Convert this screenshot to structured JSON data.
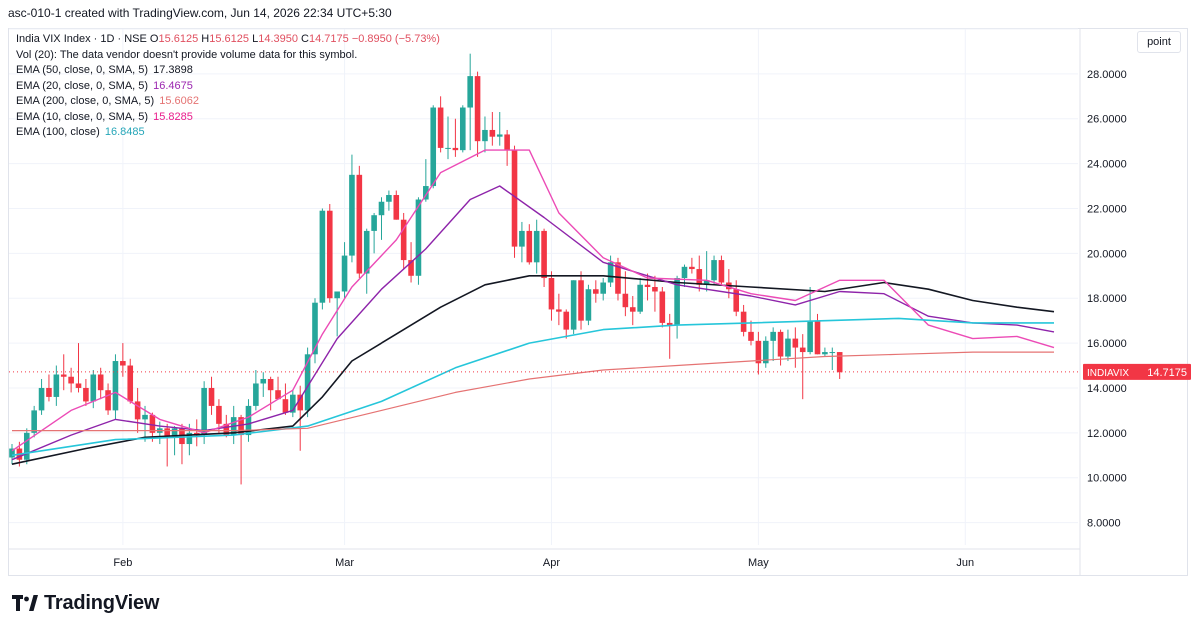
{
  "header": {
    "snapshot_text": "asc-010-1 created with TradingView.com, Jun 14, 2026 22:34 UTC+5:30"
  },
  "legend": {
    "symbol": "India VIX Index · 1D · NSE",
    "open_label": "O",
    "open_value": "15.6125",
    "high_label": "H",
    "high_value": "15.6125",
    "low_label": "L",
    "low_value": "14.3950",
    "close_label": "C",
    "close_value": "14.7175",
    "change": "−0.8950 (−5.73%)",
    "volume_text": "Vol (20): The data vendor doesn't provide volume data for this symbol.",
    "indicators": [
      {
        "label": "EMA (50, close, 0, SMA, 5)",
        "value": "17.3898",
        "color": "#131722"
      },
      {
        "label": "EMA (20, close, 0, SMA, 5)",
        "value": "16.4675",
        "color": "#9c27b0"
      },
      {
        "label": "EMA (200, close, 0, SMA, 5)",
        "value": "15.6062",
        "color": "#e57373"
      },
      {
        "label": "EMA (10, close, 0, SMA, 5)",
        "value": "15.8285",
        "color": "#e91e8c"
      },
      {
        "label": "EMA (100, close)",
        "value": "16.8485",
        "color": "#26c6da"
      }
    ]
  },
  "controls": {
    "scale_mode": "point"
  },
  "price_tag": {
    "symbol": "INDIAVIX",
    "value": "14.7175",
    "color": "#f23645"
  },
  "brand": {
    "name": "TradingView"
  },
  "colors": {
    "up": "#26a69a",
    "down": "#f23645",
    "grid": "#f0f3fa"
  },
  "chart_data": {
    "type": "candlestick",
    "title": "India VIX Index · 1D · NSE",
    "ylim": [
      7.0,
      30.0
    ],
    "y_ticks": [
      "8.0000",
      "10.0000",
      "12.0000",
      "14.0000",
      "16.0000",
      "18.0000",
      "20.0000",
      "22.0000",
      "24.0000",
      "26.0000",
      "28.0000",
      "30.0000"
    ],
    "x_ticks": [
      {
        "label": "Feb",
        "index": 15
      },
      {
        "label": "Mar",
        "index": 45
      },
      {
        "label": "Apr",
        "index": 73
      },
      {
        "label": "May",
        "index": 101
      },
      {
        "label": "Jun",
        "index": 129
      }
    ],
    "candles": [
      [
        10.9,
        11.5,
        10.6,
        11.3
      ],
      [
        11.3,
        11.6,
        10.5,
        10.8
      ],
      [
        10.8,
        12.2,
        10.6,
        12.0
      ],
      [
        12.0,
        13.2,
        11.8,
        13.0
      ],
      [
        13.0,
        14.4,
        12.8,
        14.0
      ],
      [
        14.0,
        14.6,
        13.4,
        13.6
      ],
      [
        13.6,
        15.0,
        13.2,
        14.6
      ],
      [
        14.6,
        15.5,
        13.9,
        14.5
      ],
      [
        14.5,
        14.9,
        13.8,
        14.2
      ],
      [
        14.2,
        16.0,
        13.8,
        14.0
      ],
      [
        14.0,
        14.4,
        13.2,
        13.4
      ],
      [
        13.4,
        14.8,
        13.1,
        14.6
      ],
      [
        14.6,
        14.9,
        13.5,
        13.9
      ],
      [
        13.9,
        14.2,
        12.8,
        13.0
      ],
      [
        13.0,
        15.5,
        12.6,
        15.2
      ],
      [
        15.2,
        16.0,
        14.5,
        15.0
      ],
      [
        15.0,
        15.3,
        13.3,
        13.4
      ],
      [
        13.4,
        14.0,
        12.0,
        12.6
      ],
      [
        12.6,
        13.2,
        11.6,
        12.8
      ],
      [
        12.8,
        12.9,
        11.6,
        12.0
      ],
      [
        12.0,
        12.5,
        11.5,
        12.2
      ],
      [
        12.2,
        12.4,
        10.5,
        11.8
      ],
      [
        11.8,
        12.3,
        11.0,
        12.2
      ],
      [
        12.2,
        12.4,
        10.6,
        11.5
      ],
      [
        11.5,
        12.4,
        11.0,
        12.0
      ],
      [
        12.0,
        12.6,
        11.4,
        11.9
      ],
      [
        11.9,
        14.3,
        11.5,
        14.0
      ],
      [
        14.0,
        14.5,
        12.8,
        13.2
      ],
      [
        13.2,
        13.5,
        12.0,
        12.4
      ],
      [
        12.4,
        12.8,
        11.8,
        11.9
      ],
      [
        11.9,
        13.2,
        11.5,
        12.7
      ],
      [
        12.7,
        12.8,
        9.7,
        11.9
      ],
      [
        11.9,
        13.5,
        11.6,
        13.2
      ],
      [
        13.2,
        14.8,
        13.0,
        14.2
      ],
      [
        14.2,
        14.7,
        13.6,
        14.4
      ],
      [
        14.4,
        14.5,
        13.0,
        13.9
      ],
      [
        13.9,
        14.5,
        13.6,
        13.5
      ],
      [
        13.5,
        14.2,
        12.8,
        12.9
      ],
      [
        12.9,
        13.9,
        12.7,
        13.7
      ],
      [
        13.7,
        14.1,
        11.2,
        13.0
      ],
      [
        13.0,
        15.8,
        12.7,
        15.5
      ],
      [
        15.5,
        18.0,
        15.1,
        17.8
      ],
      [
        17.8,
        22.0,
        17.5,
        21.9
      ],
      [
        21.9,
        22.2,
        17.8,
        18.0
      ],
      [
        18.0,
        18.3,
        16.3,
        18.3
      ],
      [
        18.3,
        20.5,
        18.0,
        19.9
      ],
      [
        19.9,
        24.4,
        19.6,
        23.5
      ],
      [
        23.5,
        23.9,
        18.9,
        19.1
      ],
      [
        19.1,
        21.1,
        18.2,
        21.0
      ],
      [
        21.0,
        21.8,
        20.0,
        21.7
      ],
      [
        21.7,
        22.5,
        20.6,
        22.3
      ],
      [
        22.3,
        22.8,
        21.9,
        22.6
      ],
      [
        22.6,
        22.8,
        21.5,
        21.5
      ],
      [
        21.5,
        21.8,
        19.3,
        19.7
      ],
      [
        19.7,
        20.5,
        18.7,
        19.0
      ],
      [
        19.0,
        22.5,
        18.6,
        22.4
      ],
      [
        22.4,
        24.2,
        22.3,
        23.0
      ],
      [
        23.0,
        26.6,
        22.9,
        26.5
      ],
      [
        26.5,
        27.0,
        24.5,
        24.7
      ],
      [
        24.7,
        26.1,
        24.2,
        24.7
      ],
      [
        24.7,
        26.0,
        24.3,
        24.6
      ],
      [
        24.6,
        26.6,
        24.5,
        26.5
      ],
      [
        26.5,
        28.9,
        24.6,
        27.9
      ],
      [
        27.9,
        28.1,
        24.3,
        25.0
      ],
      [
        25.0,
        26.1,
        24.5,
        25.5
      ],
      [
        25.5,
        26.3,
        24.8,
        25.2
      ],
      [
        25.2,
        26.3,
        24.8,
        25.3
      ],
      [
        25.3,
        25.5,
        23.9,
        24.6
      ],
      [
        24.6,
        24.8,
        19.8,
        20.3
      ],
      [
        20.3,
        21.4,
        19.6,
        21.0
      ],
      [
        21.0,
        21.3,
        19.5,
        19.6
      ],
      [
        19.6,
        21.5,
        19.1,
        21.0
      ],
      [
        21.0,
        21.1,
        18.5,
        18.9
      ],
      [
        18.9,
        19.2,
        17.0,
        17.5
      ],
      [
        17.5,
        18.2,
        16.8,
        17.4
      ],
      [
        17.4,
        17.5,
        16.2,
        16.6
      ],
      [
        16.6,
        18.8,
        16.4,
        18.8
      ],
      [
        18.8,
        19.2,
        16.6,
        17.0
      ],
      [
        17.0,
        18.6,
        16.8,
        18.4
      ],
      [
        18.4,
        18.8,
        17.8,
        18.2
      ],
      [
        18.2,
        18.9,
        17.9,
        18.7
      ],
      [
        18.7,
        19.9,
        18.5,
        19.6
      ],
      [
        19.6,
        19.8,
        17.9,
        18.2
      ],
      [
        18.2,
        19.2,
        17.2,
        17.6
      ],
      [
        17.6,
        18.1,
        16.8,
        17.4
      ],
      [
        17.4,
        18.9,
        17.3,
        18.6
      ],
      [
        18.6,
        19.1,
        17.9,
        18.5
      ],
      [
        18.5,
        19.0,
        17.4,
        18.3
      ],
      [
        18.3,
        18.5,
        16.7,
        16.9
      ],
      [
        16.9,
        17.3,
        15.3,
        16.8
      ],
      [
        16.8,
        19.0,
        16.2,
        18.9
      ],
      [
        18.9,
        19.5,
        18.5,
        19.4
      ],
      [
        19.4,
        19.8,
        19.1,
        19.3
      ],
      [
        19.3,
        19.9,
        18.3,
        18.6
      ],
      [
        18.6,
        20.1,
        18.3,
        18.8
      ],
      [
        18.8,
        19.9,
        18.6,
        19.7
      ],
      [
        19.7,
        19.9,
        18.6,
        18.7
      ],
      [
        18.7,
        19.3,
        18.0,
        18.4
      ],
      [
        18.4,
        18.8,
        17.2,
        17.4
      ],
      [
        17.4,
        17.7,
        16.3,
        16.5
      ],
      [
        16.5,
        17.0,
        15.9,
        16.1
      ],
      [
        16.1,
        16.5,
        14.6,
        15.1
      ],
      [
        15.1,
        16.3,
        14.9,
        16.1
      ],
      [
        16.1,
        16.7,
        15.2,
        16.5
      ],
      [
        16.5,
        16.6,
        15.0,
        15.4
      ],
      [
        15.4,
        16.6,
        15.2,
        16.2
      ],
      [
        16.2,
        16.7,
        14.9,
        15.8
      ],
      [
        15.8,
        16.4,
        13.5,
        15.6
      ],
      [
        15.6,
        18.5,
        15.5,
        17.0
      ],
      [
        17.0,
        17.3,
        15.5,
        15.5
      ],
      [
        15.5,
        15.8,
        15.4,
        15.6
      ],
      [
        15.6,
        15.8,
        14.8,
        15.6
      ],
      [
        15.6,
        15.6,
        14.4,
        14.7
      ]
    ],
    "series": [
      {
        "name": "EMA (50, close, 0, SMA, 5)",
        "color": "#131722",
        "width": 1.6,
        "values": [
          [
            0,
            10.6
          ],
          [
            10,
            11.3
          ],
          [
            18,
            11.8
          ],
          [
            30,
            12.0
          ],
          [
            38,
            12.3
          ],
          [
            42,
            13.6
          ],
          [
            46,
            15.2
          ],
          [
            52,
            16.4
          ],
          [
            58,
            17.6
          ],
          [
            64,
            18.6
          ],
          [
            70,
            19.0
          ],
          [
            80,
            19.0
          ],
          [
            90,
            18.7
          ],
          [
            100,
            18.5
          ],
          [
            110,
            18.3
          ],
          [
            118,
            18.7
          ],
          [
            124,
            18.4
          ],
          [
            130,
            17.9
          ],
          [
            136,
            17.6
          ],
          [
            141,
            17.4
          ]
        ]
      },
      {
        "name": "EMA (20, close, 0, SMA, 5)",
        "color": "#8e24aa",
        "width": 1.4,
        "values": [
          [
            0,
            10.8
          ],
          [
            8,
            11.9
          ],
          [
            14,
            12.6
          ],
          [
            20,
            12.3
          ],
          [
            26,
            12.1
          ],
          [
            32,
            12.4
          ],
          [
            38,
            13.0
          ],
          [
            44,
            16.2
          ],
          [
            50,
            18.4
          ],
          [
            56,
            20.2
          ],
          [
            62,
            22.4
          ],
          [
            66,
            23.0
          ],
          [
            72,
            21.6
          ],
          [
            80,
            19.6
          ],
          [
            90,
            18.6
          ],
          [
            100,
            18.1
          ],
          [
            106,
            17.7
          ],
          [
            112,
            18.3
          ],
          [
            118,
            18.2
          ],
          [
            124,
            17.2
          ],
          [
            130,
            16.9
          ],
          [
            136,
            16.8
          ],
          [
            141,
            16.5
          ]
        ]
      },
      {
        "name": "EMA (10, close, 0, SMA, 5)",
        "color": "#ec4bb6",
        "width": 1.4,
        "values": [
          [
            0,
            11.2
          ],
          [
            8,
            13.0
          ],
          [
            14,
            13.8
          ],
          [
            20,
            12.6
          ],
          [
            26,
            12.0
          ],
          [
            32,
            12.7
          ],
          [
            38,
            13.9
          ],
          [
            42,
            16.4
          ],
          [
            46,
            18.5
          ],
          [
            52,
            20.6
          ],
          [
            58,
            23.6
          ],
          [
            64,
            24.6
          ],
          [
            70,
            24.6
          ],
          [
            74,
            21.8
          ],
          [
            80,
            19.8
          ],
          [
            86,
            18.9
          ],
          [
            94,
            18.8
          ],
          [
            100,
            18.2
          ],
          [
            106,
            17.9
          ],
          [
            112,
            18.8
          ],
          [
            118,
            18.8
          ],
          [
            124,
            16.8
          ],
          [
            130,
            16.2
          ],
          [
            136,
            16.3
          ],
          [
            141,
            15.8
          ]
        ]
      },
      {
        "name": "EMA (100, close)",
        "color": "#26c6da",
        "width": 1.6,
        "values": [
          [
            0,
            11.0
          ],
          [
            14,
            11.7
          ],
          [
            30,
            11.9
          ],
          [
            40,
            12.3
          ],
          [
            50,
            13.4
          ],
          [
            60,
            14.9
          ],
          [
            70,
            16.0
          ],
          [
            80,
            16.6
          ],
          [
            90,
            16.8
          ],
          [
            100,
            16.9
          ],
          [
            110,
            17.0
          ],
          [
            120,
            17.1
          ],
          [
            130,
            16.9
          ],
          [
            141,
            16.9
          ]
        ]
      },
      {
        "name": "EMA (200, close, 0, SMA, 5)",
        "color": "#e57373",
        "width": 1.2,
        "values": [
          [
            0,
            12.1
          ],
          [
            14,
            12.1
          ],
          [
            30,
            12.1
          ],
          [
            40,
            12.2
          ],
          [
            50,
            13.0
          ],
          [
            60,
            13.8
          ],
          [
            70,
            14.4
          ],
          [
            80,
            14.8
          ],
          [
            90,
            15.0
          ],
          [
            100,
            15.2
          ],
          [
            110,
            15.4
          ],
          [
            120,
            15.5
          ],
          [
            130,
            15.6
          ],
          [
            141,
            15.6
          ]
        ]
      }
    ]
  }
}
